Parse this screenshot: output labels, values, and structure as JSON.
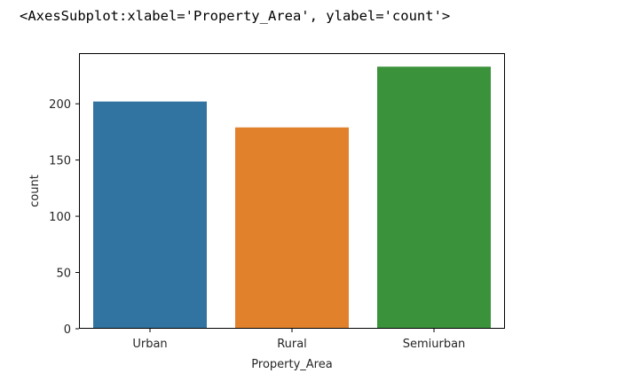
{
  "output": {
    "repr_text": "<AxesSubplot:xlabel='Property_Area', ylabel='count'>"
  },
  "chart_data": {
    "type": "bar",
    "categories": [
      "Urban",
      "Rural",
      "Semiurban"
    ],
    "values": [
      202,
      179,
      233
    ],
    "colors": [
      "#3274a1",
      "#e1812c",
      "#3a923a"
    ],
    "xlabel": "Property_Area",
    "ylabel": "count",
    "yticks": [
      0,
      50,
      100,
      150,
      200
    ],
    "ylim": [
      0,
      245
    ]
  }
}
